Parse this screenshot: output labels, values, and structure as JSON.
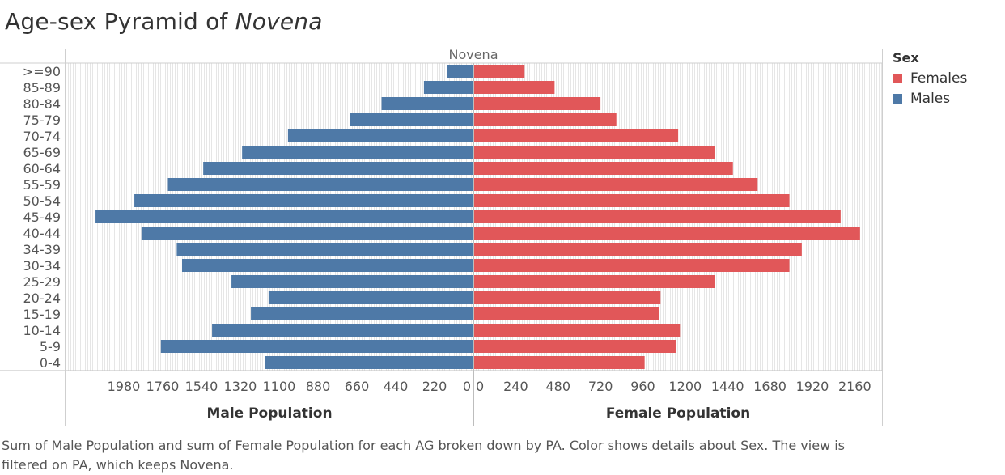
{
  "title_main": "Age-sex Pyramid of ",
  "title_place": "Novena",
  "panel_header": "Novena",
  "legend": {
    "title": "Sex",
    "items": [
      {
        "label": "Females",
        "color": "#e15759"
      },
      {
        "label": "Males",
        "color": "#4e79a7"
      }
    ]
  },
  "caption": "Sum of Male Population and sum of Female Population for each AG broken down by PA.  Color shows details about Sex. The view is filtered on PA, which keeps Novena.",
  "chart_data": {
    "type": "bar",
    "categories": [
      ">=90",
      "85-89",
      "80-84",
      "75-79",
      "70-74",
      "65-69",
      "60-64",
      "55-59",
      "50-54",
      "45-49",
      "40-44",
      "34-39",
      "30-34",
      "25-29",
      "20-24",
      "15-19",
      "10-14",
      "5-9",
      "0-4"
    ],
    "series": [
      {
        "name": "Males",
        "color": "#4e79a7",
        "values": [
          150,
          280,
          520,
          700,
          1050,
          1310,
          1530,
          1730,
          1920,
          2140,
          1880,
          1680,
          1650,
          1370,
          1160,
          1260,
          1480,
          1770,
          1180
        ]
      },
      {
        "name": "Females",
        "color": "#e15759",
        "values": [
          290,
          460,
          720,
          810,
          1160,
          1370,
          1470,
          1610,
          1790,
          2080,
          2190,
          1860,
          1790,
          1370,
          1060,
          1050,
          1170,
          1150,
          970
        ]
      }
    ],
    "xlabel_left": "Male Population",
    "xlabel_right": "Female Population",
    "left_ticks": [
      "1980",
      "1760",
      "1540",
      "1320",
      "1100",
      "880",
      "660",
      "440",
      "220",
      "0"
    ],
    "right_ticks": [
      "0",
      "240",
      "480",
      "720",
      "960",
      "1200",
      "1440",
      "1680",
      "1920",
      "2160"
    ],
    "xlim": [
      0,
      2260
    ],
    "grid": true
  }
}
